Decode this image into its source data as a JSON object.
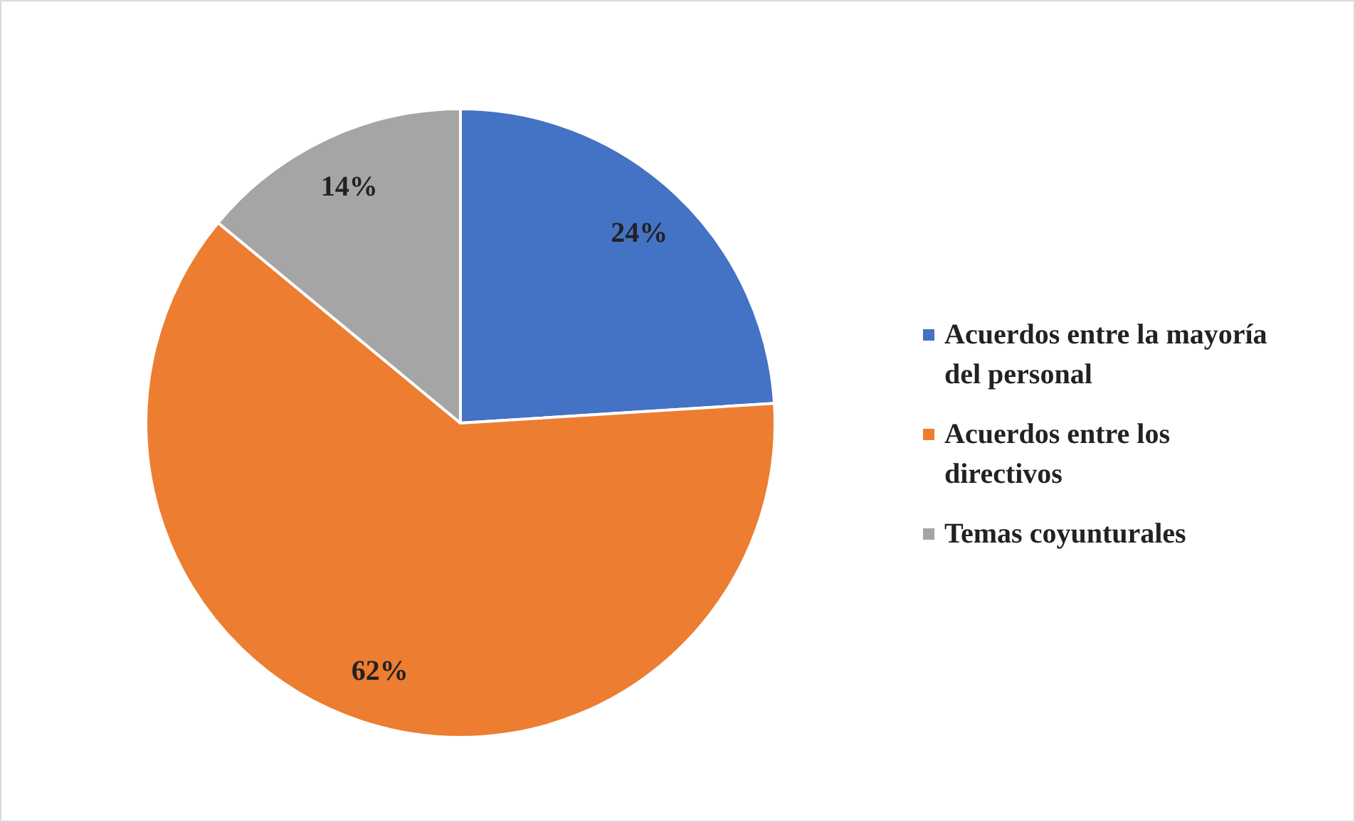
{
  "chart_data": {
    "type": "pie",
    "categories": [
      "Acuerdos entre la mayoría del personal",
      "Acuerdos entre los directivos",
      "Temas coyunturales"
    ],
    "values": [
      24,
      62,
      14
    ],
    "colors": [
      "#4472c4",
      "#ed7d31",
      "#a5a5a5"
    ],
    "value_labels": [
      "24%",
      "62%",
      "14%"
    ],
    "legend": "right"
  }
}
